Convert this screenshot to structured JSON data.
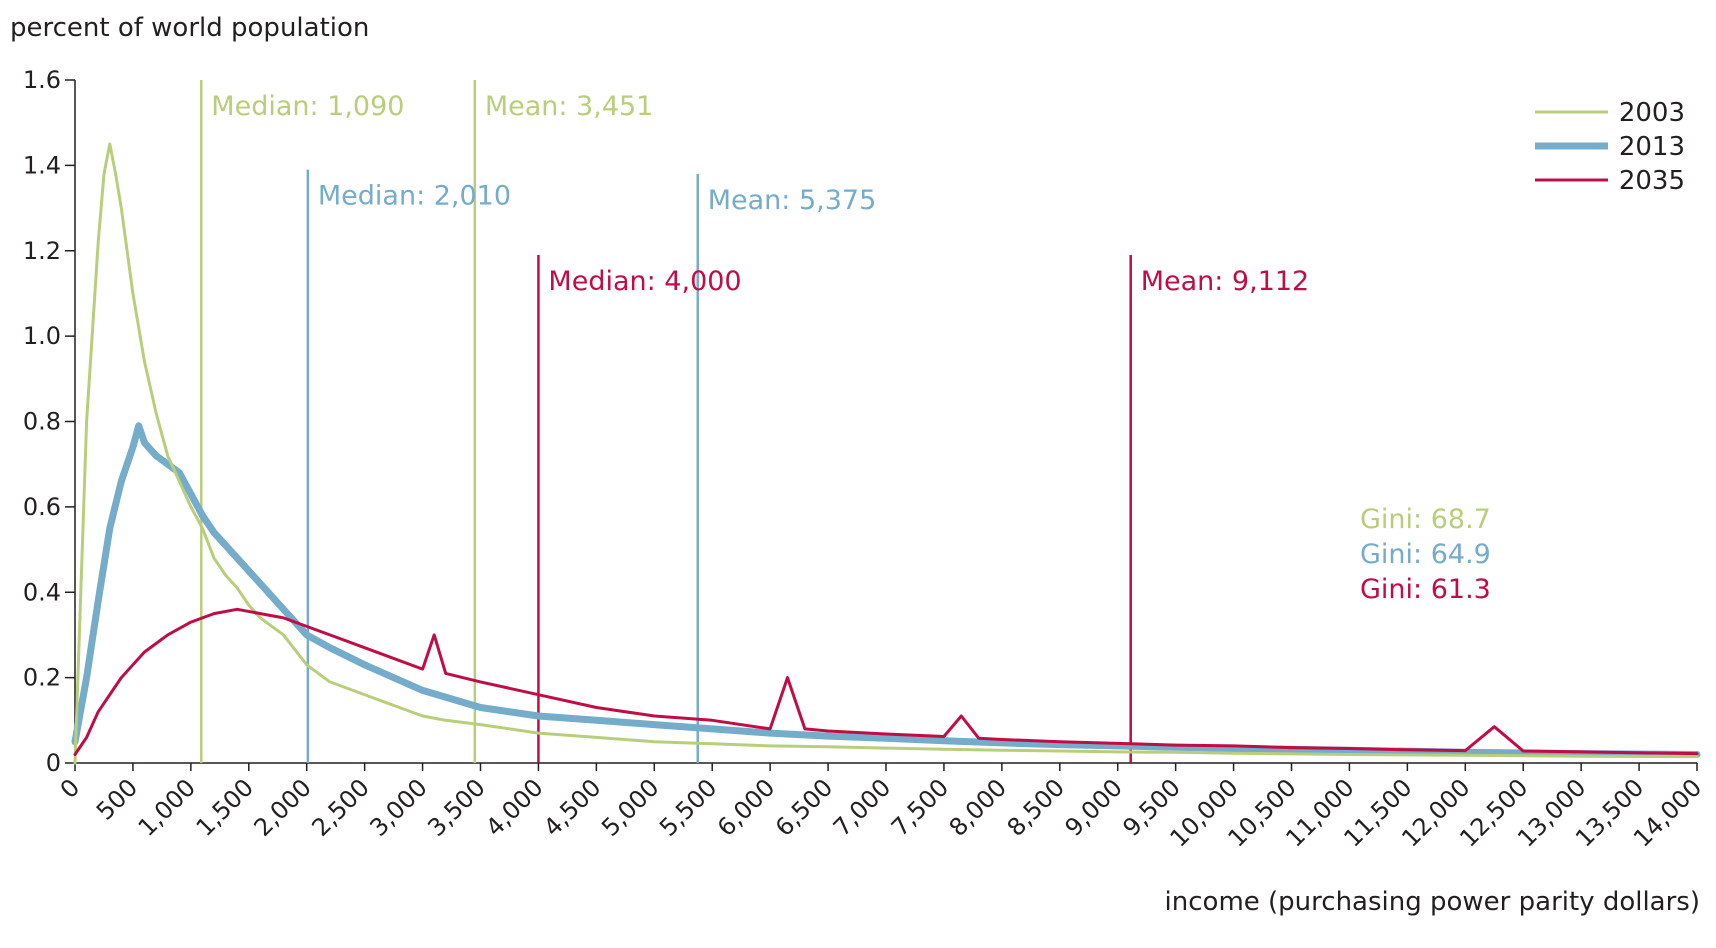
{
  "chart_data": {
    "type": "line",
    "title": "",
    "ylabel": "percent of world population",
    "xlabel": "income (purchasing power parity dollars)",
    "xlim": [
      0,
      14000
    ],
    "ylim": [
      0,
      1.6
    ],
    "grid": false,
    "legend_position": "top-right",
    "y_ticks": [
      "0",
      "0.2",
      "0.4",
      "0.6",
      "0.8",
      "1.0",
      "1.2",
      "1.4",
      "1.6"
    ],
    "x_ticks": [
      "0",
      "500",
      "1,000",
      "1,500",
      "2,000",
      "2,500",
      "3,000",
      "3,500",
      "4,000",
      "4,500",
      "5,000",
      "5,500",
      "6,000",
      "6,500",
      "7,000",
      "7,500",
      "8,000",
      "8,500",
      "9,000",
      "9,500",
      "10,000",
      "10,500",
      "11,000",
      "11,500",
      "12,000",
      "12,500",
      "13,000",
      "13,500",
      "14,000"
    ],
    "series": [
      {
        "name": "2003",
        "color": "#b9ce7a",
        "x": [
          0,
          100,
          200,
          250,
          300,
          350,
          400,
          500,
          600,
          700,
          800,
          900,
          1000,
          1100,
          1200,
          1300,
          1400,
          1500,
          1600,
          1800,
          2000,
          2200,
          2400,
          2600,
          2800,
          3000,
          3200,
          3500,
          4000,
          4500,
          5000,
          5500,
          6000,
          6500,
          7000,
          7500,
          8000,
          8500,
          9000,
          9500,
          10000,
          11000,
          12000,
          13000,
          14000
        ],
        "y": [
          0,
          0.8,
          1.22,
          1.38,
          1.45,
          1.38,
          1.3,
          1.1,
          0.94,
          0.82,
          0.72,
          0.66,
          0.6,
          0.55,
          0.48,
          0.44,
          0.41,
          0.37,
          0.34,
          0.3,
          0.23,
          0.19,
          0.17,
          0.15,
          0.13,
          0.11,
          0.1,
          0.09,
          0.07,
          0.06,
          0.05,
          0.045,
          0.04,
          0.038,
          0.035,
          0.032,
          0.03,
          0.028,
          0.026,
          0.025,
          0.023,
          0.02,
          0.018,
          0.016,
          0.015
        ]
      },
      {
        "name": "2013",
        "color": "#74acca",
        "x": [
          0,
          100,
          200,
          300,
          400,
          500,
          550,
          600,
          700,
          800,
          900,
          1000,
          1100,
          1200,
          1400,
          1600,
          1800,
          2000,
          2200,
          2500,
          3000,
          3500,
          4000,
          4500,
          5000,
          5500,
          6000,
          6500,
          7000,
          7500,
          8000,
          8500,
          9000,
          9500,
          10000,
          11000,
          12000,
          13000,
          14000
        ],
        "y": [
          0.05,
          0.2,
          0.38,
          0.55,
          0.66,
          0.74,
          0.79,
          0.75,
          0.72,
          0.7,
          0.68,
          0.63,
          0.58,
          0.54,
          0.48,
          0.42,
          0.36,
          0.3,
          0.27,
          0.23,
          0.17,
          0.13,
          0.11,
          0.1,
          0.09,
          0.08,
          0.07,
          0.063,
          0.058,
          0.052,
          0.047,
          0.043,
          0.04,
          0.037,
          0.034,
          0.03,
          0.025,
          0.022,
          0.02
        ]
      },
      {
        "name": "2035",
        "color": "#c00d45",
        "x": [
          0,
          100,
          200,
          400,
          600,
          800,
          1000,
          1200,
          1400,
          1600,
          1800,
          2000,
          2200,
          2500,
          3000,
          3100,
          3200,
          3500,
          4000,
          4500,
          5000,
          5500,
          6000,
          6150,
          6300,
          6500,
          7000,
          7500,
          7650,
          7800,
          8000,
          8500,
          9000,
          9500,
          10000,
          10500,
          11000,
          11500,
          12000,
          12250,
          12500,
          13000,
          14000
        ],
        "y": [
          0.02,
          0.06,
          0.12,
          0.2,
          0.26,
          0.3,
          0.33,
          0.35,
          0.36,
          0.35,
          0.34,
          0.32,
          0.3,
          0.27,
          0.22,
          0.3,
          0.21,
          0.19,
          0.16,
          0.13,
          0.11,
          0.1,
          0.08,
          0.2,
          0.08,
          0.075,
          0.068,
          0.062,
          0.11,
          0.058,
          0.055,
          0.05,
          0.046,
          0.042,
          0.04,
          0.036,
          0.034,
          0.031,
          0.029,
          0.085,
          0.028,
          0.026,
          0.022
        ]
      }
    ],
    "annotations": [
      {
        "label": "Median: 1,090",
        "x": 1090,
        "y_top": 1.6,
        "color": "#b9ce7a"
      },
      {
        "label": "Mean: 3,451",
        "x": 3451,
        "y_top": 1.6,
        "color": "#b9ce7a"
      },
      {
        "label": "Median: 2,010",
        "x": 2010,
        "y_top": 1.39,
        "color": "#74acca"
      },
      {
        "label": "Mean: 5,375",
        "x": 5375,
        "y_top": 1.38,
        "color": "#74acca"
      },
      {
        "label": "Median: 4,000",
        "x": 4000,
        "y_top": 1.19,
        "color": "#c00d45"
      },
      {
        "label": "Mean: 9,112",
        "x": 9112,
        "y_top": 1.19,
        "color": "#c00d45"
      }
    ],
    "gini": [
      {
        "label": "Gini: 68.7",
        "color": "#b9ce7a"
      },
      {
        "label": "Gini: 64.9",
        "color": "#74acca"
      },
      {
        "label": "Gini: 61.3",
        "color": "#c00d45"
      }
    ]
  }
}
